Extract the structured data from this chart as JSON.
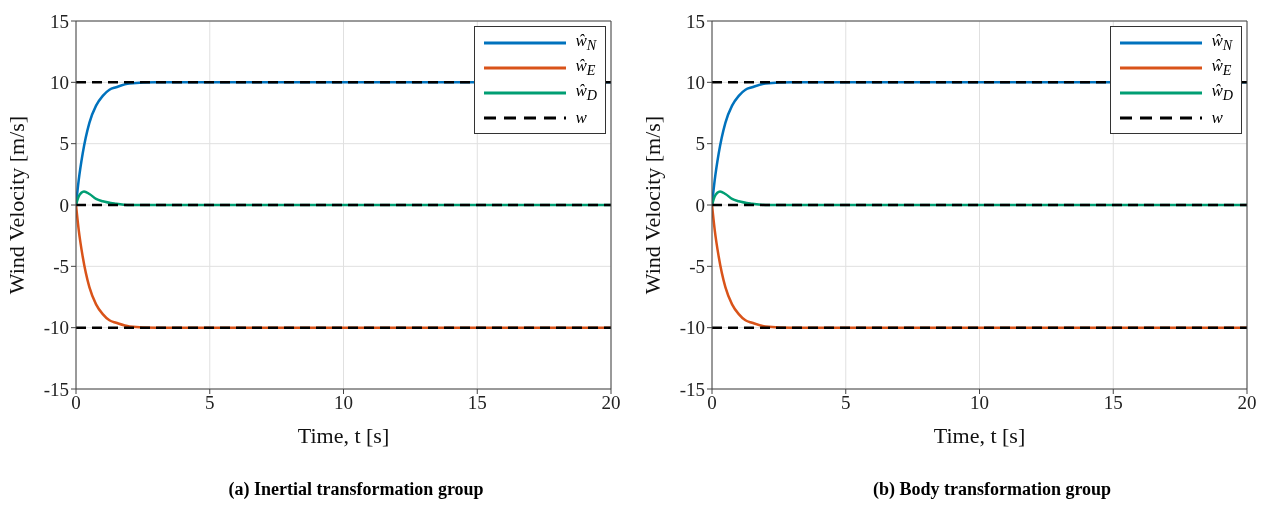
{
  "chart_data": [
    {
      "type": "line",
      "title": "(a) Inertial transformation group",
      "xlabel": "Time, t [s]",
      "ylabel": "Wind Velocity [m/s]",
      "xlim": [
        0,
        20
      ],
      "xticks": [
        0,
        5,
        10,
        15,
        20
      ],
      "ylim": [
        -15,
        15
      ],
      "yticks": [
        -15,
        -10,
        -5,
        0,
        5,
        10,
        15
      ],
      "grid": true,
      "legend": "top right",
      "series": [
        {
          "name": "ŵ$_{N}$",
          "color": "#0072bd",
          "x": [
            0,
            0.1,
            0.25,
            0.5,
            0.75,
            1,
            1.25,
            1.5,
            2,
            3,
            20
          ],
          "values": [
            0,
            2.0,
            4.2,
            6.7,
            8.1,
            8.9,
            9.4,
            9.6,
            9.9,
            10,
            10
          ]
        },
        {
          "name": "ŵ$_{E}$",
          "color": "#d95319",
          "x": [
            0,
            0.1,
            0.25,
            0.5,
            0.75,
            1,
            1.25,
            1.5,
            2,
            3,
            20
          ],
          "values": [
            0,
            -2.0,
            -4.2,
            -6.7,
            -8.1,
            -8.9,
            -9.4,
            -9.6,
            -9.9,
            -10,
            -10
          ]
        },
        {
          "name": "ŵ$_{D}$",
          "color": "#009e73",
          "x": [
            0,
            0.1,
            0.2,
            0.3,
            0.5,
            0.75,
            1,
            1.5,
            2,
            3,
            20
          ],
          "values": [
            0,
            0.7,
            1.0,
            1.1,
            0.9,
            0.5,
            0.3,
            0.1,
            0,
            0,
            0
          ]
        },
        {
          "name": "w",
          "color": "#000000",
          "line_style": "dashed",
          "x": [
            0,
            20
          ],
          "values": [
            10,
            10
          ]
        },
        {
          "color": "#000000",
          "line_style": "dashed",
          "x": [
            0,
            20
          ],
          "values": [
            0,
            0
          ]
        },
        {
          "color": "#000000",
          "line_style": "dashed",
          "x": [
            0,
            20
          ],
          "values": [
            -10,
            -10
          ]
        }
      ]
    },
    {
      "type": "line",
      "title": "(b) Body transformation group",
      "xlabel": "Time, t [s]",
      "ylabel": "Wind Velocity [m/s]",
      "xlim": [
        0,
        20
      ],
      "xticks": [
        0,
        5,
        10,
        15,
        20
      ],
      "ylim": [
        -15,
        15
      ],
      "yticks": [
        -15,
        -10,
        -5,
        0,
        5,
        10,
        15
      ],
      "grid": true,
      "legend": "top right",
      "series": [
        {
          "name": "ŵ$_{N}$",
          "color": "#0072bd",
          "x": [
            0,
            0.1,
            0.25,
            0.5,
            0.75,
            1,
            1.25,
            1.5,
            2,
            3,
            20
          ],
          "values": [
            0,
            2.0,
            4.2,
            6.7,
            8.1,
            8.9,
            9.4,
            9.6,
            9.9,
            10,
            10
          ]
        },
        {
          "name": "ŵ$_{E}$",
          "color": "#d95319",
          "x": [
            0,
            0.1,
            0.25,
            0.5,
            0.75,
            1,
            1.25,
            1.5,
            2,
            3,
            20
          ],
          "values": [
            0,
            -2.0,
            -4.2,
            -6.7,
            -8.1,
            -8.9,
            -9.4,
            -9.6,
            -9.9,
            -10,
            -10
          ]
        },
        {
          "name": "ŵ$_{D}$",
          "color": "#009e73",
          "x": [
            0,
            0.1,
            0.2,
            0.3,
            0.5,
            0.75,
            1,
            1.5,
            2,
            3,
            20
          ],
          "values": [
            0,
            0.7,
            1.0,
            1.1,
            0.9,
            0.5,
            0.3,
            0.1,
            0,
            0,
            0
          ]
        },
        {
          "name": "w",
          "color": "#000000",
          "line_style": "dashed",
          "x": [
            0,
            20
          ],
          "values": [
            10,
            10
          ]
        },
        {
          "color": "#000000",
          "line_style": "dashed",
          "x": [
            0,
            20
          ],
          "values": [
            0,
            0
          ]
        },
        {
          "color": "#000000",
          "line_style": "dashed",
          "x": [
            0,
            20
          ],
          "values": [
            -10,
            -10
          ]
        }
      ]
    }
  ]
}
